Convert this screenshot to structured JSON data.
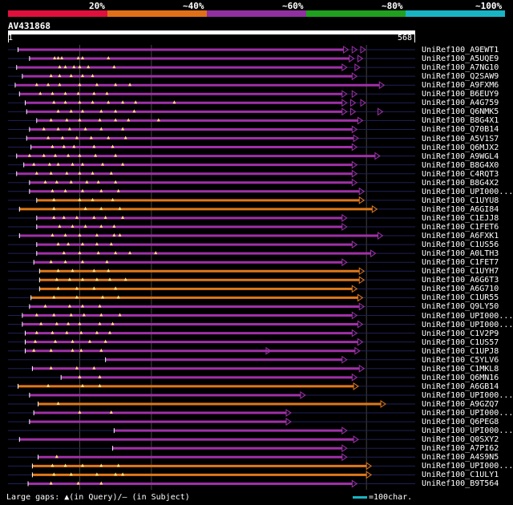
{
  "legend": {
    "labels": [
      "20%",
      "~40%",
      "~60%",
      "~80%",
      "~100%"
    ],
    "colors": [
      "#e0103c",
      "#e07018",
      "#9030a0",
      "#20a020",
      "#19b4c4"
    ]
  },
  "query": {
    "id": "AV431868",
    "start": "1",
    "end": "568",
    "length": 568
  },
  "hits": [
    {
      "name": "UniRef100_A9EWT1",
      "start": 14,
      "end": 468,
      "color": "purple",
      "tails": [
        480,
        492
      ],
      "gaps": []
    },
    {
      "name": "UniRef100_A5UQE9",
      "start": 30,
      "end": 476,
      "color": "purple",
      "tails": [
        488
      ],
      "gaps": [
        65,
        70,
        75,
        98,
        104,
        140
      ]
    },
    {
      "name": "UniRef100_A7NG10",
      "start": 12,
      "end": 466,
      "color": "purple",
      "tails": [
        484
      ],
      "gaps": [
        72,
        80,
        92,
        100,
        112,
        148
      ]
    },
    {
      "name": "UniRef100_Q2SAW9",
      "start": 20,
      "end": 480,
      "color": "purple",
      "tails": [],
      "gaps": [
        60,
        72,
        88,
        104,
        118
      ]
    },
    {
      "name": "UniRef100_A9FXM6",
      "start": 10,
      "end": 518,
      "color": "purple",
      "tails": [],
      "gaps": [
        40,
        56,
        72,
        100,
        124,
        150,
        170
      ]
    },
    {
      "name": "UniRef100_B6EUY9",
      "start": 16,
      "end": 466,
      "color": "purple",
      "tails": [
        480
      ],
      "gaps": [
        45,
        62,
        80,
        98,
        120,
        138
      ]
    },
    {
      "name": "UniRef100_A4G759",
      "start": 24,
      "end": 466,
      "color": "purple",
      "tails": [
        478,
        492
      ],
      "gaps": [
        64,
        80,
        100,
        118,
        140,
        160,
        178,
        232
      ]
    },
    {
      "name": "UniRef100_Q6NMK5",
      "start": 26,
      "end": 466,
      "color": "purple",
      "tails": [
        478,
        516
      ],
      "gaps": [
        70,
        88,
        104,
        130,
        150,
        176
      ]
    },
    {
      "name": "UniRef100_B8G4X1",
      "start": 40,
      "end": 488,
      "color": "purple",
      "tails": [],
      "gaps": [
        60,
        82,
        100,
        128,
        150,
        168,
        210
      ]
    },
    {
      "name": "UniRef100_Q70B14",
      "start": 30,
      "end": 480,
      "color": "purple",
      "tails": [],
      "gaps": [
        50,
        70,
        86,
        108,
        130,
        160
      ]
    },
    {
      "name": "UniRef100_A5V1S7",
      "start": 26,
      "end": 482,
      "color": "purple",
      "tails": [],
      "gaps": [
        56,
        76,
        96,
        116,
        140,
        164
      ]
    },
    {
      "name": "UniRef100_Q6MJX2",
      "start": 32,
      "end": 480,
      "color": "purple",
      "tails": [],
      "gaps": [
        62,
        78,
        92,
        120,
        146
      ]
    },
    {
      "name": "UniRef100_A9WGL4",
      "start": 12,
      "end": 512,
      "color": "purple",
      "tails": [],
      "gaps": [
        30,
        50,
        66,
        84,
        100,
        122,
        150
      ]
    },
    {
      "name": "UniRef100_B8G4X0",
      "start": 22,
      "end": 480,
      "color": "purple",
      "tails": [],
      "gaps": [
        36,
        58,
        70,
        90,
        104,
        132,
        160
      ]
    },
    {
      "name": "UniRef100_C4RQT3",
      "start": 12,
      "end": 480,
      "color": "purple",
      "tails": [],
      "gaps": [
        40,
        60,
        82,
        100,
        118,
        144
      ]
    },
    {
      "name": "UniRef100_B8G4X2",
      "start": 30,
      "end": 480,
      "color": "purple",
      "tails": [],
      "gaps": [
        52,
        68,
        88,
        110,
        126,
        150
      ]
    },
    {
      "name": "UniRef100_UPI000...",
      "start": 30,
      "end": 490,
      "color": "purple",
      "tails": [],
      "gaps": [
        62,
        80,
        104,
        130,
        154
      ]
    },
    {
      "name": "UniRef100_C1UYU8",
      "start": 40,
      "end": 490,
      "color": "orange",
      "tails": [],
      "gaps": [
        64,
        100,
        118,
        146
      ]
    },
    {
      "name": "UniRef100_A6GI84",
      "start": 16,
      "end": 508,
      "color": "orange",
      "tails": [],
      "gaps": [
        64,
        108,
        130,
        156
      ]
    },
    {
      "name": "UniRef100_C1EJJ8",
      "start": 40,
      "end": 466,
      "color": "purple",
      "tails": [],
      "gaps": [
        64,
        78,
        96,
        120,
        136,
        160
      ]
    },
    {
      "name": "UniRef100_C1FET6",
      "start": 40,
      "end": 466,
      "color": "purple",
      "tails": [],
      "gaps": [
        72,
        90,
        108,
        130,
        148
      ]
    },
    {
      "name": "UniRef100_A6FXK1",
      "start": 16,
      "end": 516,
      "color": "purple",
      "tails": [],
      "gaps": [
        62,
        80,
        100,
        124,
        148,
        156
      ]
    },
    {
      "name": "UniRef100_C1US56",
      "start": 40,
      "end": 480,
      "color": "purple",
      "tails": [],
      "gaps": [
        70,
        84,
        104,
        124,
        144
      ]
    },
    {
      "name": "UniRef100_A0LTH3",
      "start": 40,
      "end": 506,
      "color": "purple",
      "tails": [],
      "gaps": [
        78,
        100,
        126,
        150,
        170,
        206
      ]
    },
    {
      "name": "UniRef100_C1FET7",
      "start": 36,
      "end": 466,
      "color": "purple",
      "tails": [],
      "gaps": [
        60,
        80,
        104,
        138
      ]
    },
    {
      "name": "UniRef100_C1UYH7",
      "start": 44,
      "end": 490,
      "color": "orange",
      "tails": [],
      "gaps": [
        70,
        90,
        120,
        140
      ]
    },
    {
      "name": "UniRef100_A6G6T3",
      "start": 44,
      "end": 490,
      "color": "orange",
      "tails": [],
      "gaps": [
        68,
        86,
        104,
        124,
        142,
        164
      ]
    },
    {
      "name": "UniRef100_A6G710",
      "start": 44,
      "end": 480,
      "color": "orange",
      "tails": [],
      "gaps": [
        70,
        96,
        120,
        150
      ]
    },
    {
      "name": "UniRef100_C1UR55",
      "start": 32,
      "end": 488,
      "color": "orange",
      "tails": [],
      "gaps": [
        64,
        96,
        132,
        154
      ]
    },
    {
      "name": "UniRef100_Q9LY50",
      "start": 30,
      "end": 490,
      "color": "purple",
      "tails": [],
      "gaps": [
        52,
        86,
        104,
        128
      ]
    },
    {
      "name": "UniRef100_UPI000...",
      "start": 20,
      "end": 480,
      "color": "purple",
      "tails": [],
      "gaps": [
        40,
        64,
        88,
        106,
        130,
        156
      ]
    },
    {
      "name": "UniRef100_UPI000...",
      "start": 20,
      "end": 488,
      "color": "purple",
      "tails": [],
      "gaps": [
        46,
        68,
        84,
        100,
        128,
        146
      ]
    },
    {
      "name": "UniRef100_C1V2P9",
      "start": 24,
      "end": 480,
      "color": "purple",
      "tails": [],
      "gaps": [
        40,
        62,
        82,
        102,
        124,
        142
      ]
    },
    {
      "name": "UniRef100_C1US57",
      "start": 24,
      "end": 488,
      "color": "purple",
      "tails": [],
      "gaps": [
        38,
        66,
        90,
        114,
        136
      ]
    },
    {
      "name": "UniRef100_C1UPJ8",
      "start": 24,
      "end": 484,
      "color": "purple",
      "tails": [
        360
      ],
      "gaps": [
        36,
        60,
        90,
        102,
        130
      ]
    },
    {
      "name": "UniRef100_C5YLV6",
      "start": 136,
      "end": 466,
      "color": "purple",
      "tails": [],
      "gaps": []
    },
    {
      "name": "UniRef100_C1MKL8",
      "start": 34,
      "end": 490,
      "color": "purple",
      "tails": [],
      "gaps": [
        60,
        96,
        120
      ]
    },
    {
      "name": "UniRef100_Q6MN16",
      "start": 74,
      "end": 480,
      "color": "purple",
      "tails": [],
      "gaps": [
        100,
        128
      ]
    },
    {
      "name": "UniRef100_A6GB14",
      "start": 14,
      "end": 482,
      "color": "orange",
      "tails": [],
      "gaps": [
        56,
        104,
        128
      ]
    },
    {
      "name": "UniRef100_UPI000...",
      "start": 30,
      "end": 408,
      "color": "purple",
      "tails": [],
      "gaps": []
    },
    {
      "name": "UniRef100_A9GZQ7",
      "start": 42,
      "end": 520,
      "color": "orange",
      "tails": [],
      "gaps": [
        70
      ]
    },
    {
      "name": "UniRef100_UPI000...",
      "start": 36,
      "end": 388,
      "color": "purple",
      "tails": [],
      "gaps": [
        100,
        144
      ]
    },
    {
      "name": "UniRef100_Q6PEG8",
      "start": 30,
      "end": 388,
      "color": "purple",
      "tails": [],
      "gaps": []
    },
    {
      "name": "UniRef100_UPI000...",
      "start": 148,
      "end": 466,
      "color": "purple",
      "tails": [],
      "gaps": []
    },
    {
      "name": "UniRef100_Q0SXY2",
      "start": 16,
      "end": 482,
      "color": "purple",
      "tails": [],
      "gaps": []
    },
    {
      "name": "UniRef100_A7PI62",
      "start": 146,
      "end": 466,
      "color": "purple",
      "tails": [],
      "gaps": []
    },
    {
      "name": "UniRef100_A4S9N5",
      "start": 42,
      "end": 466,
      "color": "purple",
      "tails": [],
      "gaps": [
        68
      ]
    },
    {
      "name": "UniRef100_UPI000...",
      "start": 34,
      "end": 500,
      "color": "orange",
      "tails": [],
      "gaps": [
        62,
        80,
        104,
        130,
        154
      ]
    },
    {
      "name": "UniRef100_C1ULY1",
      "start": 34,
      "end": 500,
      "color": "orange",
      "tails": [],
      "gaps": [
        64,
        88,
        124,
        150,
        160
      ]
    },
    {
      "name": "UniRef100_B9T564",
      "start": 28,
      "end": 480,
      "color": "purple",
      "tails": [],
      "gaps": [
        60,
        98,
        130
      ]
    }
  ],
  "colors": {
    "purple": "#a030a8",
    "orange": "#e07818",
    "dim": "#20205a",
    "gap_marker": "#ffe080",
    "grid": "#444444"
  },
  "footer": {
    "text": "Large gaps: ▲(in Query)/– (in Subject)",
    "scale": "=100char."
  }
}
